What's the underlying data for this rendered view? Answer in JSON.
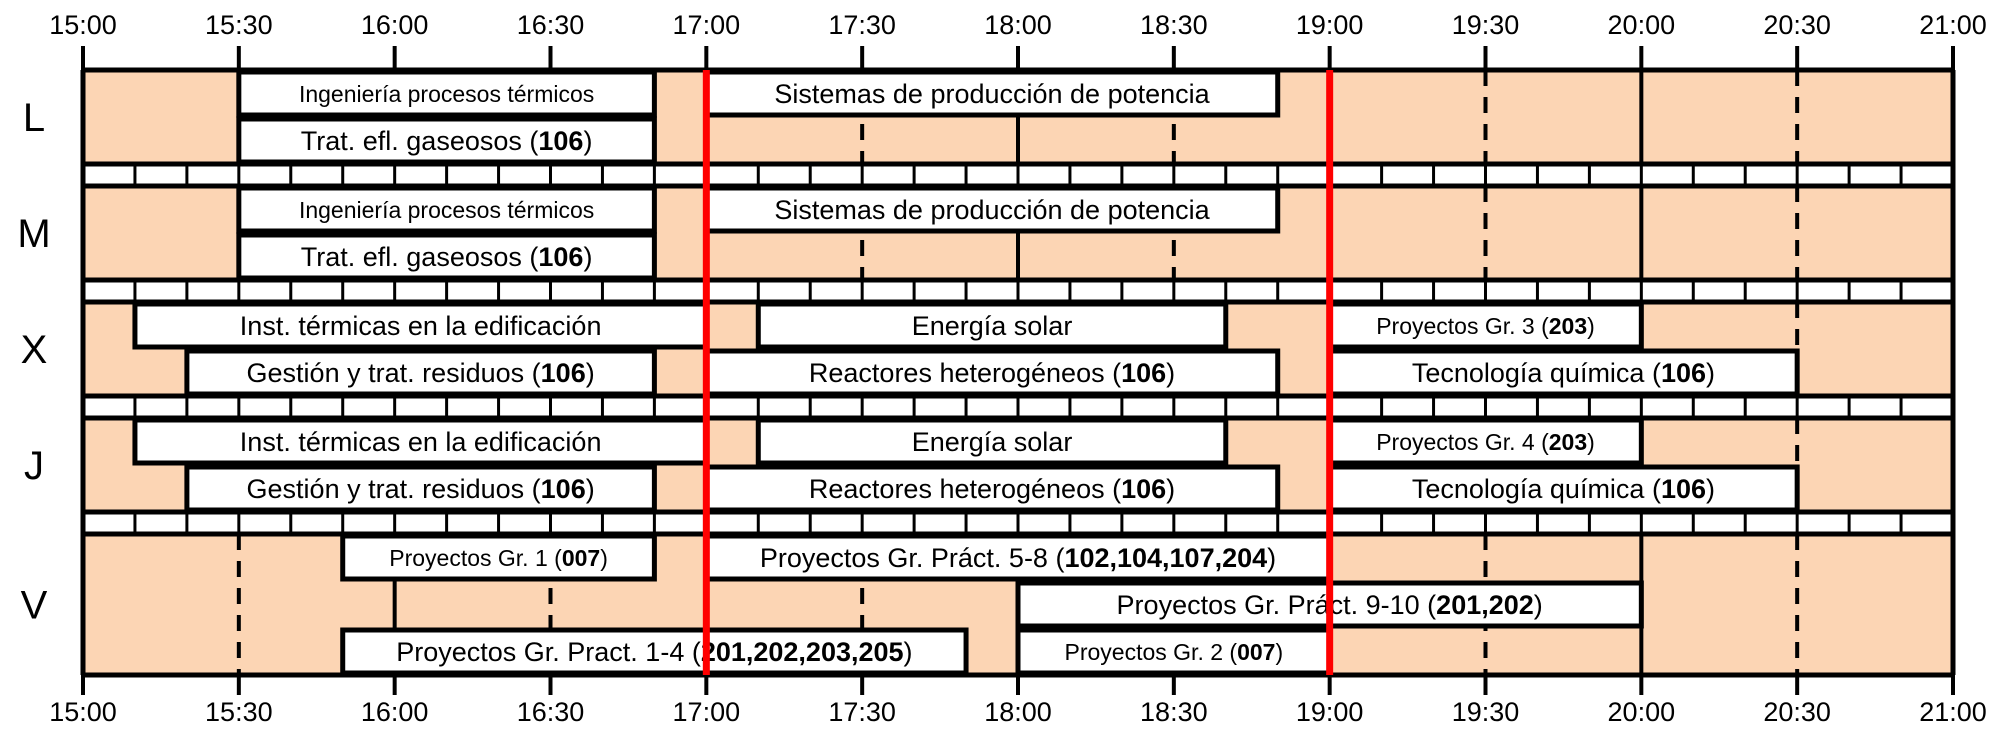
{
  "time_ticks": [
    "15:00",
    "15:30",
    "16:00",
    "16:30",
    "17:00",
    "17:30",
    "18:00",
    "18:30",
    "19:00",
    "19:30",
    "20:00",
    "20:30",
    "21:00"
  ],
  "highlight_times": [
    "17:00",
    "19:00"
  ],
  "colors": {
    "background": "#fcd5b4",
    "course_fill": "#ffffff",
    "grid": "#000000",
    "highlight": "#ff0000"
  },
  "days": [
    {
      "label": "L",
      "rows": 2,
      "cells": [
        {
          "row": 0,
          "start": "15:30",
          "end": "16:50",
          "parts": [
            {
              "t": "Ingeniería procesos térmicos"
            }
          ],
          "size": "small"
        },
        {
          "row": 0,
          "start": "17:00",
          "end": "18:50",
          "parts": [
            {
              "t": "Sistemas de producción de potencia"
            }
          ]
        },
        {
          "row": 1,
          "start": "15:30",
          "end": "16:50",
          "parts": [
            {
              "t": "Trat. efl. gaseosos ("
            },
            {
              "t": "106",
              "b": true
            },
            {
              "t": ")"
            }
          ]
        }
      ]
    },
    {
      "label": "M",
      "rows": 2,
      "cells": [
        {
          "row": 0,
          "start": "15:30",
          "end": "16:50",
          "parts": [
            {
              "t": "Ingeniería procesos térmicos"
            }
          ],
          "size": "small"
        },
        {
          "row": 0,
          "start": "17:00",
          "end": "18:50",
          "parts": [
            {
              "t": "Sistemas de producción de potencia"
            }
          ]
        },
        {
          "row": 1,
          "start": "15:30",
          "end": "16:50",
          "parts": [
            {
              "t": "Trat. efl. gaseosos ("
            },
            {
              "t": "106",
              "b": true
            },
            {
              "t": ")"
            }
          ]
        }
      ]
    },
    {
      "label": "X",
      "rows": 2,
      "cells": [
        {
          "row": 0,
          "start": "15:10",
          "end": "17:00",
          "parts": [
            {
              "t": "Inst. térmicas en la edificación"
            }
          ]
        },
        {
          "row": 0,
          "start": "17:10",
          "end": "18:40",
          "parts": [
            {
              "t": "Energía solar"
            }
          ]
        },
        {
          "row": 0,
          "start": "19:00",
          "end": "20:00",
          "parts": [
            {
              "t": "Proyectos Gr. 3 ("
            },
            {
              "t": "203",
              "b": true
            },
            {
              "t": ")"
            }
          ],
          "size": "small"
        },
        {
          "row": 1,
          "start": "15:20",
          "end": "16:50",
          "parts": [
            {
              "t": "Gestión y trat. residuos  ("
            },
            {
              "t": "106",
              "b": true
            },
            {
              "t": ")"
            }
          ]
        },
        {
          "row": 1,
          "start": "17:00",
          "end": "18:50",
          "parts": [
            {
              "t": "Reactores heterogéneos ("
            },
            {
              "t": "106",
              "b": true
            },
            {
              "t": ")"
            }
          ]
        },
        {
          "row": 1,
          "start": "19:00",
          "end": "20:30",
          "parts": [
            {
              "t": "Tecnología química ("
            },
            {
              "t": "106",
              "b": true
            },
            {
              "t": ")"
            }
          ]
        }
      ]
    },
    {
      "label": "J",
      "rows": 2,
      "cells": [
        {
          "row": 0,
          "start": "15:10",
          "end": "17:00",
          "parts": [
            {
              "t": "Inst. térmicas en la edificación"
            }
          ]
        },
        {
          "row": 0,
          "start": "17:10",
          "end": "18:40",
          "parts": [
            {
              "t": "Energía solar"
            }
          ]
        },
        {
          "row": 0,
          "start": "19:00",
          "end": "20:00",
          "parts": [
            {
              "t": "Proyectos Gr. 4 ("
            },
            {
              "t": "203",
              "b": true
            },
            {
              "t": ")"
            }
          ],
          "size": "small"
        },
        {
          "row": 1,
          "start": "15:20",
          "end": "16:50",
          "parts": [
            {
              "t": "Gestión y trat. residuos  ("
            },
            {
              "t": "106",
              "b": true
            },
            {
              "t": ")"
            }
          ]
        },
        {
          "row": 1,
          "start": "17:00",
          "end": "18:50",
          "parts": [
            {
              "t": "Reactores heterogéneos ("
            },
            {
              "t": "106",
              "b": true
            },
            {
              "t": ")"
            }
          ]
        },
        {
          "row": 1,
          "start": "19:00",
          "end": "20:30",
          "parts": [
            {
              "t": "Tecnología química ("
            },
            {
              "t": "106",
              "b": true
            },
            {
              "t": ")"
            }
          ]
        }
      ]
    },
    {
      "label": "V",
      "rows": 3,
      "cells": [
        {
          "row": 0,
          "start": "15:50",
          "end": "16:50",
          "parts": [
            {
              "t": "Proyectos Gr. 1 ("
            },
            {
              "t": "007",
              "b": true
            },
            {
              "t": ")"
            }
          ],
          "size": "small"
        },
        {
          "row": 0,
          "start": "17:00",
          "end": "19:00",
          "parts": [
            {
              "t": "Proyectos Gr. Práct. 5-8 ("
            },
            {
              "t": "102,104,107,204",
              "b": true
            },
            {
              "t": ")"
            }
          ]
        },
        {
          "row": 1,
          "start": "18:00",
          "end": "20:00",
          "parts": [
            {
              "t": "Proyectos Gr. Práct. 9-10 ("
            },
            {
              "t": "201,202",
              "b": true
            },
            {
              "t": ")"
            }
          ]
        },
        {
          "row": 2,
          "start": "15:50",
          "end": "17:50",
          "parts": [
            {
              "t": "Proyectos Gr. Pract. 1-4 ("
            },
            {
              "t": "201,202,203,205",
              "b": true
            },
            {
              "t": ")"
            }
          ]
        },
        {
          "row": 2,
          "start": "18:00",
          "end": "19:00",
          "parts": [
            {
              "t": "Proyectos Gr. 2 ("
            },
            {
              "t": "007",
              "b": true
            },
            {
              "t": ")"
            }
          ],
          "size": "small"
        }
      ]
    }
  ]
}
